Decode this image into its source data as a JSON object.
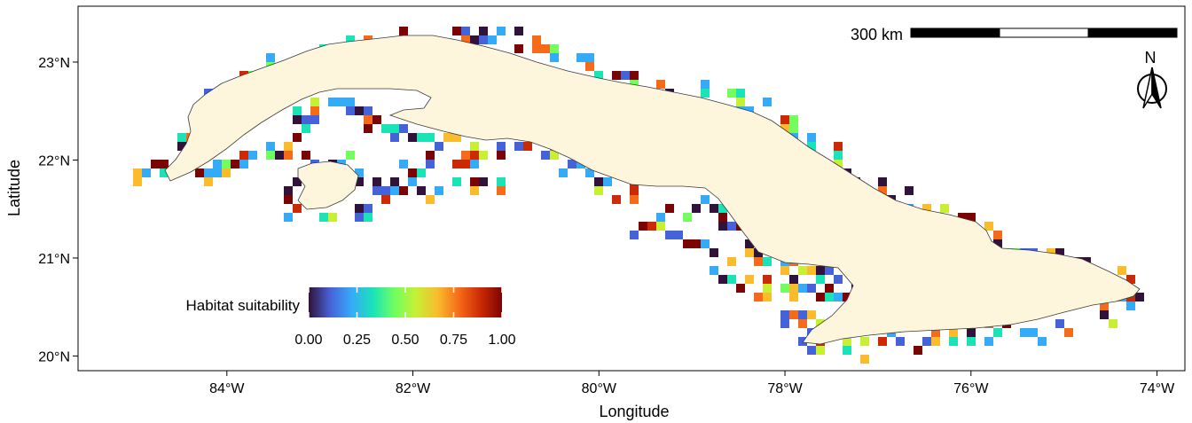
{
  "axes": {
    "xlabel": "Longitude",
    "ylabel": "Latitude",
    "x_ticks": [
      {
        "value": -84,
        "label": "84°W"
      },
      {
        "value": -82,
        "label": "82°W"
      },
      {
        "value": -80,
        "label": "80°W"
      },
      {
        "value": -78,
        "label": "78°W"
      },
      {
        "value": -76,
        "label": "76°W"
      },
      {
        "value": -74,
        "label": "74°W"
      }
    ],
    "y_ticks": [
      {
        "value": 20,
        "label": "20°N"
      },
      {
        "value": 21,
        "label": "21°N"
      },
      {
        "value": 22,
        "label": "22°N"
      },
      {
        "value": 23,
        "label": "23°N"
      }
    ],
    "xlim": [
      -85.6,
      -73.7
    ],
    "ylim": [
      19.85,
      23.57
    ]
  },
  "legend": {
    "title": "Habitat suitability",
    "ticks": [
      "0.00",
      "0.25",
      "0.50",
      "0.75",
      "1.00"
    ],
    "palette": [
      "#30123b",
      "#4662d8",
      "#35abf8",
      "#1ae4b6",
      "#72fe5e",
      "#c7ef34",
      "#fabb2d",
      "#f66b19",
      "#cb2a04",
      "#7a0403"
    ]
  },
  "scale_bar": {
    "label": "300 km"
  },
  "north_arrow": {
    "label": "N"
  },
  "colors": {
    "land": "#fdf5dc",
    "coast": "#3a3a3a",
    "frame": "#000000"
  }
}
